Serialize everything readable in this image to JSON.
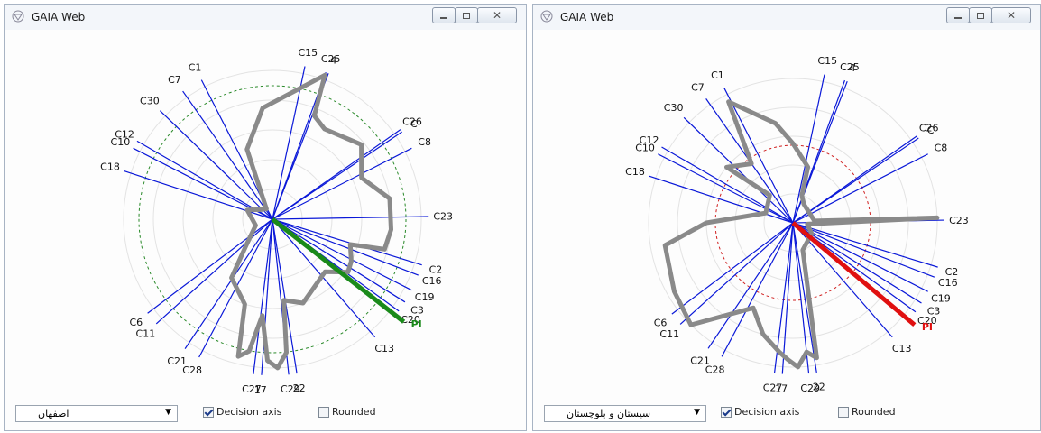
{
  "windows": [
    {
      "id": "left",
      "title": "GAIA Web",
      "region_select": "اصفهان",
      "decision_axis_label": "Decision axis",
      "decision_axis_checked": true,
      "rounded_label": "Rounded",
      "rounded_checked": false,
      "pi_label": "PI",
      "pi_color": "#1a8a1a",
      "circle_color": "#2a8a2a",
      "axes": [
        {
          "label": "C1",
          "angle": -117
        },
        {
          "label": "C7",
          "angle": -125
        },
        {
          "label": "C30",
          "angle": -136
        },
        {
          "label": "C12",
          "angle": -150
        },
        {
          "label": "C10",
          "angle": -153
        },
        {
          "label": "C18",
          "angle": -162
        },
        {
          "label": "C15",
          "angle": -78
        },
        {
          "label": "C25",
          "angle": -70
        },
        {
          "label": "4",
          "angle": -69
        },
        {
          "label": "C26",
          "angle": -35
        },
        {
          "label": "C",
          "angle": -34
        },
        {
          "label": "C8",
          "angle": -27
        },
        {
          "label": "C23",
          "angle": -1
        },
        {
          "label": "C2",
          "angle": 17
        },
        {
          "label": "C16",
          "angle": 21
        },
        {
          "label": "C19",
          "angle": 27
        },
        {
          "label": "C3",
          "angle": 32
        },
        {
          "label": "C20",
          "angle": 36
        },
        {
          "label": "C13",
          "angle": 49
        },
        {
          "label": "C6",
          "angle": 143
        },
        {
          "label": "C11",
          "angle": 138
        },
        {
          "label": "C21",
          "angle": 124
        },
        {
          "label": "C28",
          "angle": 118
        },
        {
          "label": "C27",
          "angle": 97
        },
        {
          "label": "17",
          "angle": 94
        },
        {
          "label": "C29",
          "angle": 84
        },
        {
          "label": "22",
          "angle": 81
        }
      ]
    },
    {
      "id": "right",
      "title": "GAIA Web",
      "region_select": "سیستان و بلوچستان",
      "decision_axis_label": "Decision axis",
      "decision_axis_checked": true,
      "rounded_label": "Rounded",
      "rounded_checked": false,
      "pi_label": "PI",
      "pi_color": "#e01010",
      "circle_color": "#d02020",
      "axes": [
        {
          "label": "C1",
          "angle": -117
        },
        {
          "label": "C7",
          "angle": -125
        },
        {
          "label": "C30",
          "angle": -136
        },
        {
          "label": "C12",
          "angle": -150
        },
        {
          "label": "C10",
          "angle": -153
        },
        {
          "label": "C18",
          "angle": -162
        },
        {
          "label": "C15",
          "angle": -78
        },
        {
          "label": "C25",
          "angle": -70
        },
        {
          "label": "4",
          "angle": -69
        },
        {
          "label": "C26",
          "angle": -35
        },
        {
          "label": "C",
          "angle": -34
        },
        {
          "label": "C8",
          "angle": -27
        },
        {
          "label": "C23",
          "angle": -1
        },
        {
          "label": "C2",
          "angle": 17
        },
        {
          "label": "C16",
          "angle": 21
        },
        {
          "label": "C19",
          "angle": 27
        },
        {
          "label": "C3",
          "angle": 32
        },
        {
          "label": "C20",
          "angle": 36
        },
        {
          "label": "C13",
          "angle": 49
        },
        {
          "label": "C6",
          "angle": 143
        },
        {
          "label": "C11",
          "angle": 138
        },
        {
          "label": "C21",
          "angle": 124
        },
        {
          "label": "C28",
          "angle": 118
        },
        {
          "label": "C27",
          "angle": 97
        },
        {
          "label": "17",
          "angle": 94
        },
        {
          "label": "C29",
          "angle": 84
        },
        {
          "label": "22",
          "angle": 81
        }
      ]
    }
  ],
  "icons": {
    "app": "gaia-logo-icon",
    "minimize": "minimize-icon",
    "maximize": "maximize-icon",
    "close": "close-icon",
    "dropdown": "chevron-down-icon"
  }
}
